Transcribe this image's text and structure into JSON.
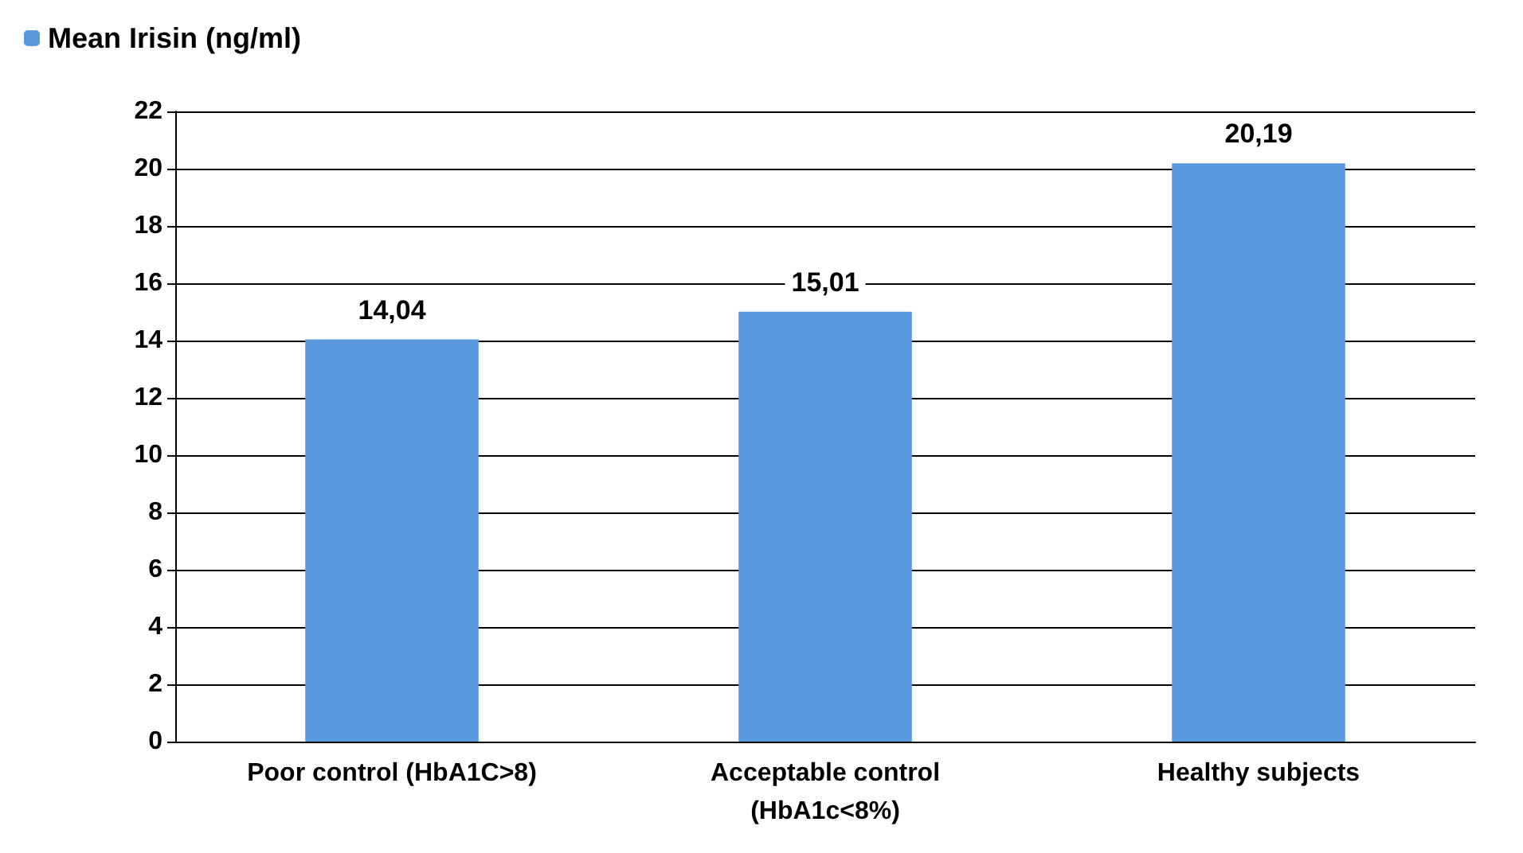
{
  "chart_data": {
    "type": "bar",
    "categories": [
      "Poor control (HbA1C>8)",
      "Acceptable control\n(HbA1c<8%)",
      "Healthy subjects"
    ],
    "series": [
      {
        "name": "Mean Irisin (ng/ml)",
        "color": "#5a9be0",
        "values": [
          14.04,
          15.01,
          20.19
        ],
        "value_labels": [
          "14,04",
          "15,01",
          "20,19"
        ]
      }
    ],
    "ylim": [
      0,
      22
    ],
    "yticks": [
      0,
      2,
      4,
      6,
      8,
      10,
      12,
      14,
      16,
      18,
      20,
      22
    ],
    "grid": "y",
    "legend": "top left"
  }
}
